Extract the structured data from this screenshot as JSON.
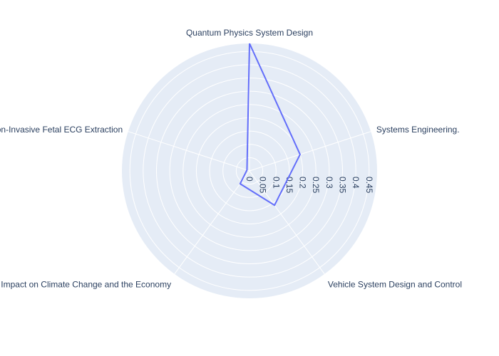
{
  "chart_data": {
    "type": "radar",
    "categories": [
      "Quantum Physics System Design",
      "Systems Engineering.",
      "Vehicle System Design and Control",
      "Impact on Climate Change and the Economy",
      "Non-Invasive Fetal ECG Extraction"
    ],
    "series": [
      {
        "values": [
          0.48,
          0.2,
          0.16,
          0.06,
          0.01
        ]
      }
    ],
    "radial_range": [
      0,
      0.48
    ],
    "radial_ticks": [
      "0",
      "0.05",
      "0.1",
      "0.15",
      "0.2",
      "0.25",
      "0.3",
      "0.35",
      "0.4",
      "0.45"
    ],
    "grid": true,
    "legend": "none",
    "colors": {
      "line": "#636efa",
      "polar_bg": "#e5ecf6",
      "grid": "#ffffff",
      "text": "#2a3f5f"
    }
  }
}
